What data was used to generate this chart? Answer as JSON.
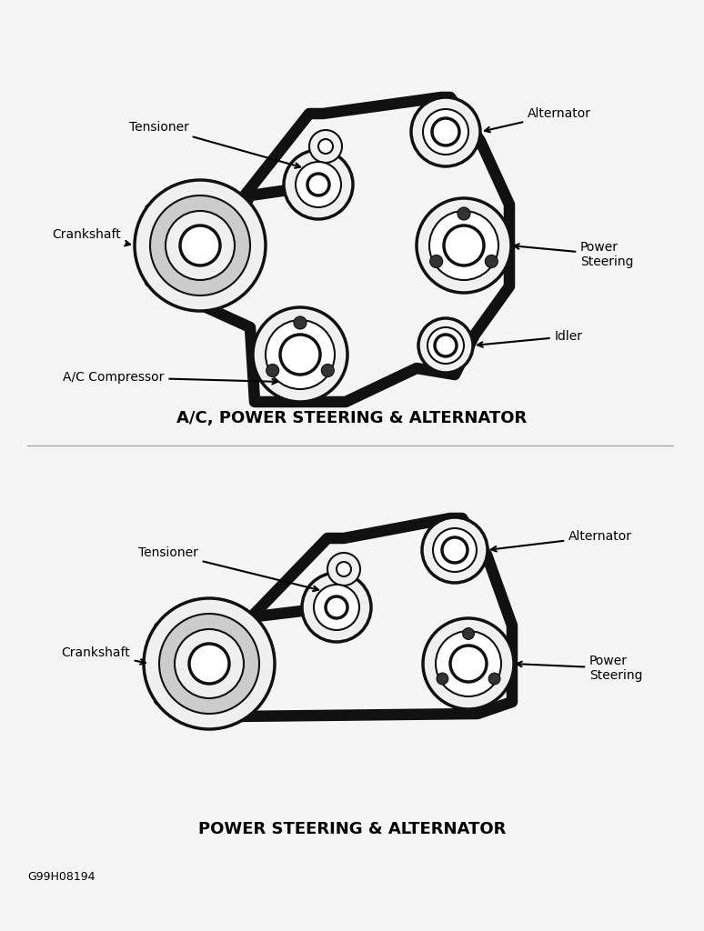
{
  "bg_color": "#f5f5f5",
  "title1": "A/C, POWER STEERING & ALTERNATOR",
  "title2": "POWER STEERING & ALTERNATOR",
  "watermark": "G99H08194",
  "fontsize_label": 10,
  "fontsize_title": 13,
  "fontsize_watermark": 9
}
